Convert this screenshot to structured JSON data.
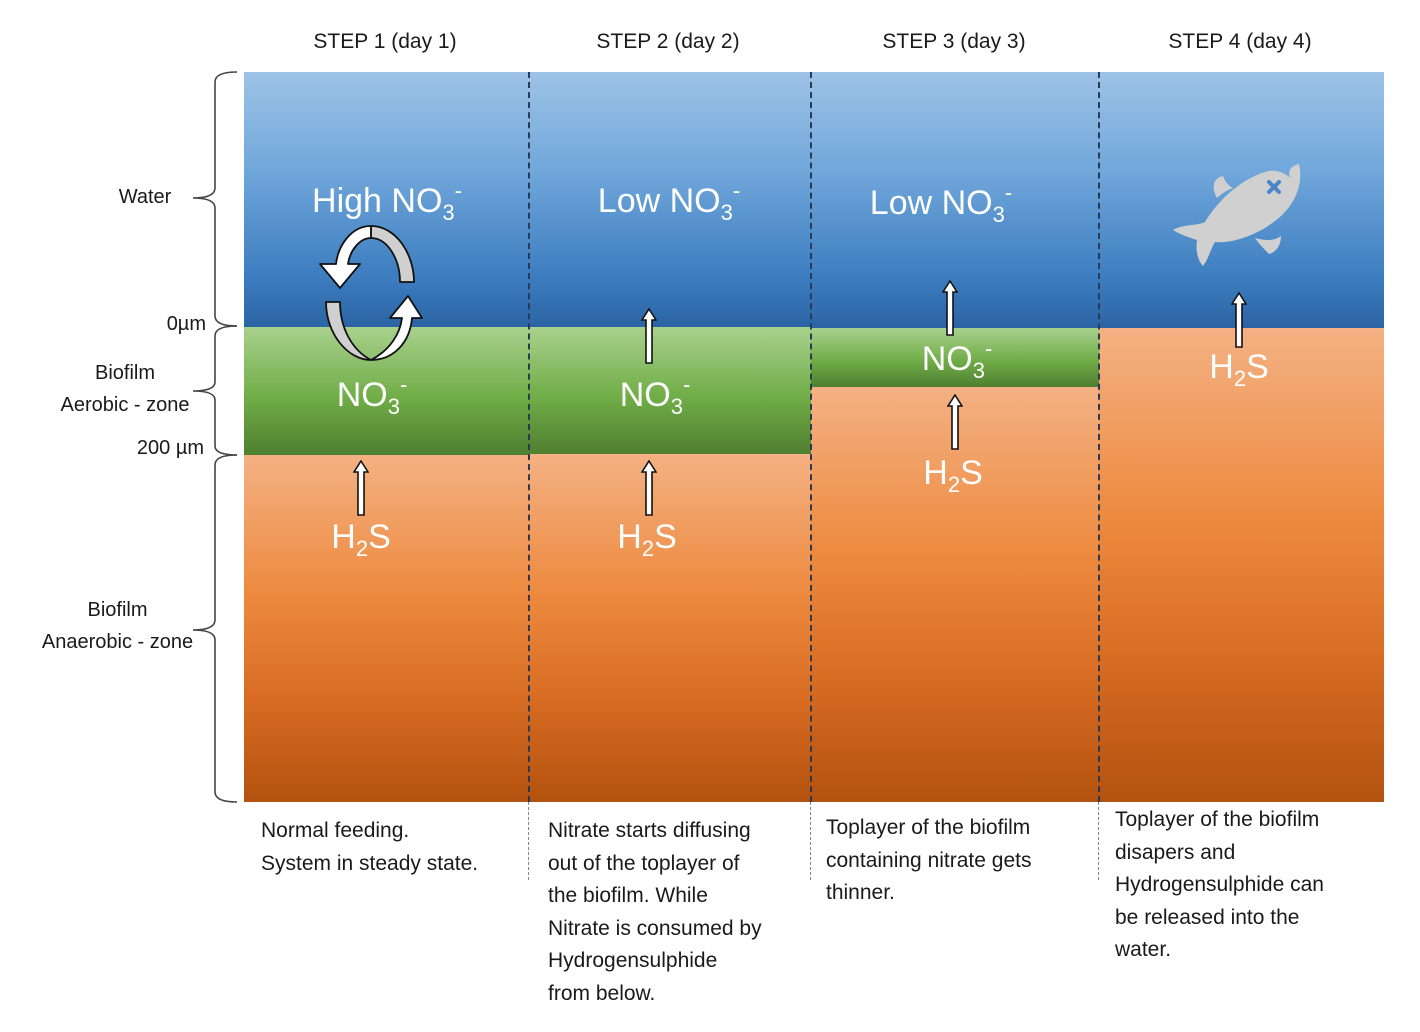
{
  "steps": [
    {
      "title": "STEP 1 (day 1)",
      "water_label": {
        "prefix": "High NO",
        "sub": "3",
        "sup": "-"
      },
      "biofilm_label": {
        "prefix": "NO",
        "sub": "3",
        "sup": "-"
      },
      "anaerobic_label": {
        "prefix": "H",
        "sub": "2",
        "suffix": "S"
      },
      "description": "Normal feeding.\nSystem in steady state."
    },
    {
      "title": "STEP 2 (day 2)",
      "water_label": {
        "prefix": "Low NO",
        "sub": "3",
        "sup": "-"
      },
      "biofilm_label": {
        "prefix": "NO",
        "sub": "3",
        "sup": "-"
      },
      "anaerobic_label": {
        "prefix": "H",
        "sub": "2",
        "suffix": "S"
      },
      "description": "Nitrate starts diffusing\nout of the toplayer of\nthe biofilm. While\nNitrate is consumed by\nHydrogensulphide\nfrom below."
    },
    {
      "title": "STEP 3 (day 3)",
      "water_label": {
        "prefix": "Low NO",
        "sub": "3",
        "sup": "-"
      },
      "biofilm_label": {
        "prefix": "NO",
        "sub": "3",
        "sup": "-"
      },
      "anaerobic_label": {
        "prefix": "H",
        "sub": "2",
        "suffix": "S"
      },
      "description": "Toplayer of the biofilm\ncontaining nitrate gets\nthinner."
    },
    {
      "title": "STEP 4 (day 4)",
      "anaerobic_label": {
        "prefix": "H",
        "sub": "2",
        "suffix": "S"
      },
      "description": "Toplayer of the biofilm\ndisapers and\nHydrogensulphide can\nbe released into the\nwater."
    }
  ],
  "zones": {
    "water": "Water",
    "zero": "0µm",
    "aerobic": [
      "Biofilm",
      "Aerobic - zone"
    ],
    "depth": "200 µm",
    "anaerobic": [
      "Biofilm",
      "Anaerobic - zone"
    ]
  },
  "icons": {
    "cycle": "circular-exchange-arrows-icon",
    "dead_fish": "dead-fish-icon",
    "up_arrow": "up-arrow-icon"
  },
  "colors": {
    "water_top": "#9dc3e6",
    "water_bottom": "#2b64a4",
    "aerobic_top": "#a9d18e",
    "aerobic_bottom": "#4f7f30",
    "anaerobic_top": "#f4b183",
    "anaerobic_bottom": "#b3520f",
    "fish": "#d0d0d0"
  }
}
